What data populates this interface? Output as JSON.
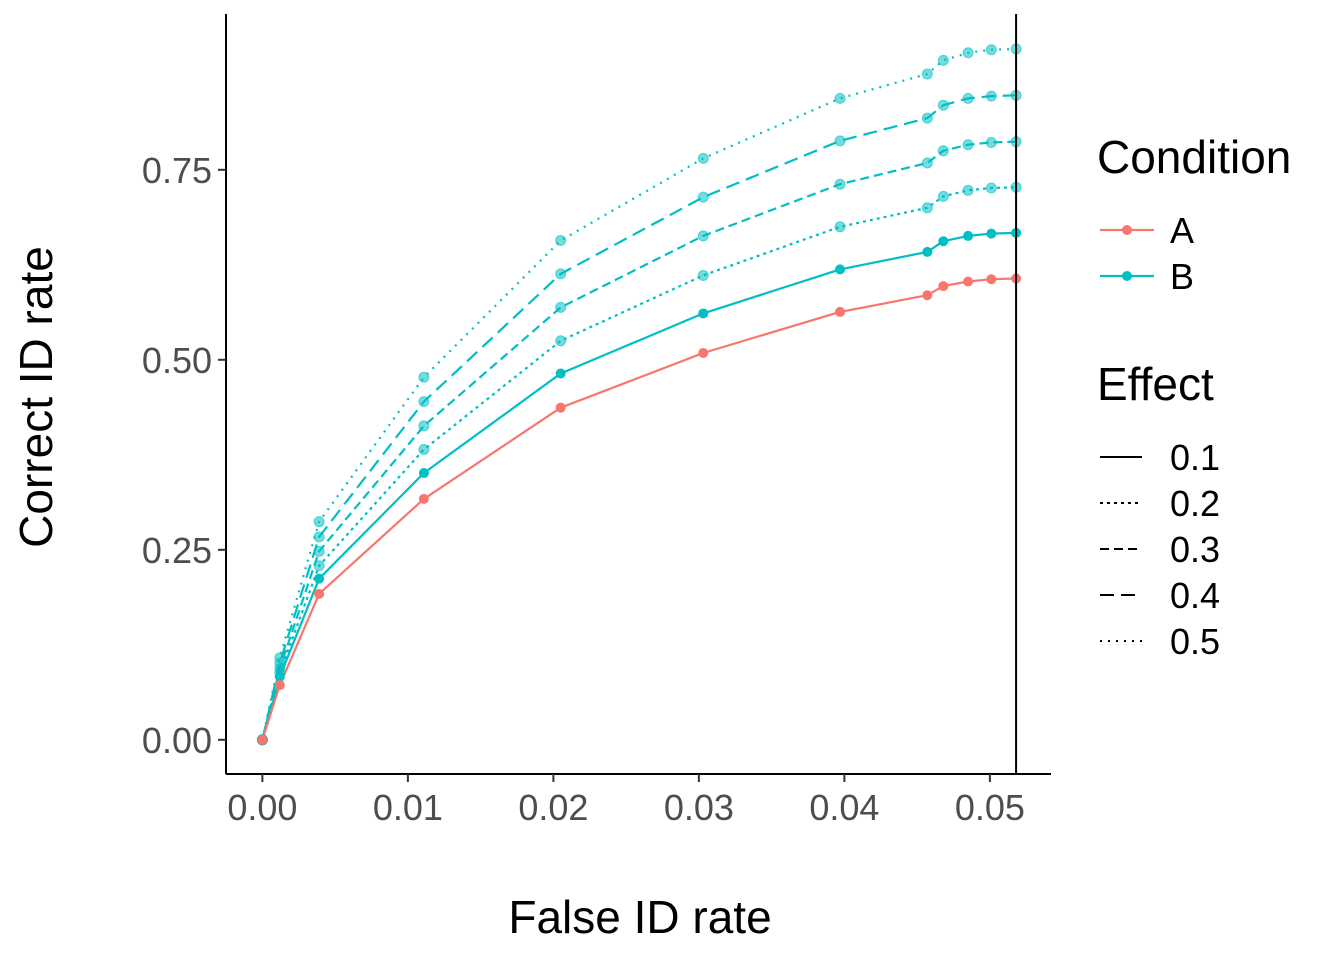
{
  "chart_data": {
    "type": "line",
    "xlabel": "False ID rate",
    "ylabel": "Correct ID rate",
    "xlim": [
      -0.0025,
      0.0542
    ],
    "ylim": [
      -0.045,
      0.955
    ],
    "x_ticks": [
      "0.00",
      "0.01",
      "0.02",
      "0.03",
      "0.04",
      "0.05"
    ],
    "y_ticks": [
      "0.00",
      "0.25",
      "0.50",
      "0.75"
    ],
    "x_tick_values": [
      0,
      0.01,
      0.02,
      0.03,
      0.04,
      0.05
    ],
    "y_tick_values": [
      0,
      0.25,
      0.5,
      0.75
    ],
    "vline_x": 0.0518,
    "grid": false,
    "legend_position": "right",
    "legends": {
      "condition": {
        "title": "Condition",
        "items": [
          {
            "label": "A",
            "color": "#F8766D"
          },
          {
            "label": "B",
            "color": "#00BFC4"
          }
        ]
      },
      "effect": {
        "title": "Effect",
        "items": [
          {
            "label": "0.1",
            "linetype": "solid"
          },
          {
            "label": "0.2",
            "linetype": "dotted"
          },
          {
            "label": "0.3",
            "linetype": "dashed"
          },
          {
            "label": "0.4",
            "linetype": "longdash"
          },
          {
            "label": "0.5",
            "linetype": "dotted-fine"
          }
        ]
      }
    },
    "series": [
      {
        "condition": "A",
        "effect": "0.1",
        "color": "#F8766D",
        "linetype": "solid",
        "alpha": 1.0,
        "x": [
          0.0,
          0.0012,
          0.0039,
          0.0111,
          0.0205,
          0.0303,
          0.0397,
          0.0457,
          0.0468,
          0.0485,
          0.0501,
          0.0518
        ],
        "y": [
          0.0,
          0.072,
          0.192,
          0.317,
          0.437,
          0.509,
          0.563,
          0.585,
          0.597,
          0.603,
          0.606,
          0.607
        ]
      },
      {
        "condition": "B",
        "effect": "0.1",
        "color": "#00BFC4",
        "linetype": "solid",
        "alpha": 1.0,
        "x": [
          0.0,
          0.0012,
          0.0039,
          0.0111,
          0.0205,
          0.0303,
          0.0397,
          0.0457,
          0.0468,
          0.0485,
          0.0501,
          0.0518
        ],
        "y": [
          0.0,
          0.083,
          0.212,
          0.351,
          0.482,
          0.561,
          0.619,
          0.642,
          0.656,
          0.663,
          0.666,
          0.667
        ]
      },
      {
        "condition": "B",
        "effect": "0.2",
        "color": "#00BFC4",
        "linetype": "dotted",
        "alpha": 0.55,
        "x": [
          0.0,
          0.0012,
          0.0039,
          0.0111,
          0.0205,
          0.0303,
          0.0397,
          0.0457,
          0.0468,
          0.0485,
          0.0501,
          0.0518
        ],
        "y": [
          0.0,
          0.088,
          0.229,
          0.382,
          0.525,
          0.611,
          0.675,
          0.7,
          0.715,
          0.723,
          0.726,
          0.727
        ]
      },
      {
        "condition": "B",
        "effect": "0.3",
        "color": "#00BFC4",
        "linetype": "dashed",
        "alpha": 0.55,
        "x": [
          0.0,
          0.0012,
          0.0039,
          0.0111,
          0.0205,
          0.0303,
          0.0397,
          0.0457,
          0.0468,
          0.0485,
          0.0501,
          0.0518
        ],
        "y": [
          0.0,
          0.094,
          0.248,
          0.413,
          0.569,
          0.663,
          0.731,
          0.759,
          0.775,
          0.783,
          0.786,
          0.787
        ]
      },
      {
        "condition": "B",
        "effect": "0.4",
        "color": "#00BFC4",
        "linetype": "longdash",
        "alpha": 0.55,
        "x": [
          0.0,
          0.0012,
          0.0039,
          0.0111,
          0.0205,
          0.0303,
          0.0397,
          0.0457,
          0.0468,
          0.0485,
          0.0501,
          0.0518
        ],
        "y": [
          0.0,
          0.101,
          0.267,
          0.445,
          0.613,
          0.714,
          0.788,
          0.818,
          0.835,
          0.844,
          0.847,
          0.848
        ]
      },
      {
        "condition": "B",
        "effect": "0.5",
        "color": "#00BFC4",
        "linetype": "dotted-fine",
        "alpha": 0.55,
        "x": [
          0.0,
          0.0012,
          0.0039,
          0.0111,
          0.0205,
          0.0303,
          0.0397,
          0.0457,
          0.0468,
          0.0485,
          0.0501,
          0.0518
        ],
        "y": [
          0.0,
          0.108,
          0.287,
          0.477,
          0.657,
          0.765,
          0.844,
          0.876,
          0.894,
          0.904,
          0.908,
          0.909
        ]
      }
    ]
  }
}
